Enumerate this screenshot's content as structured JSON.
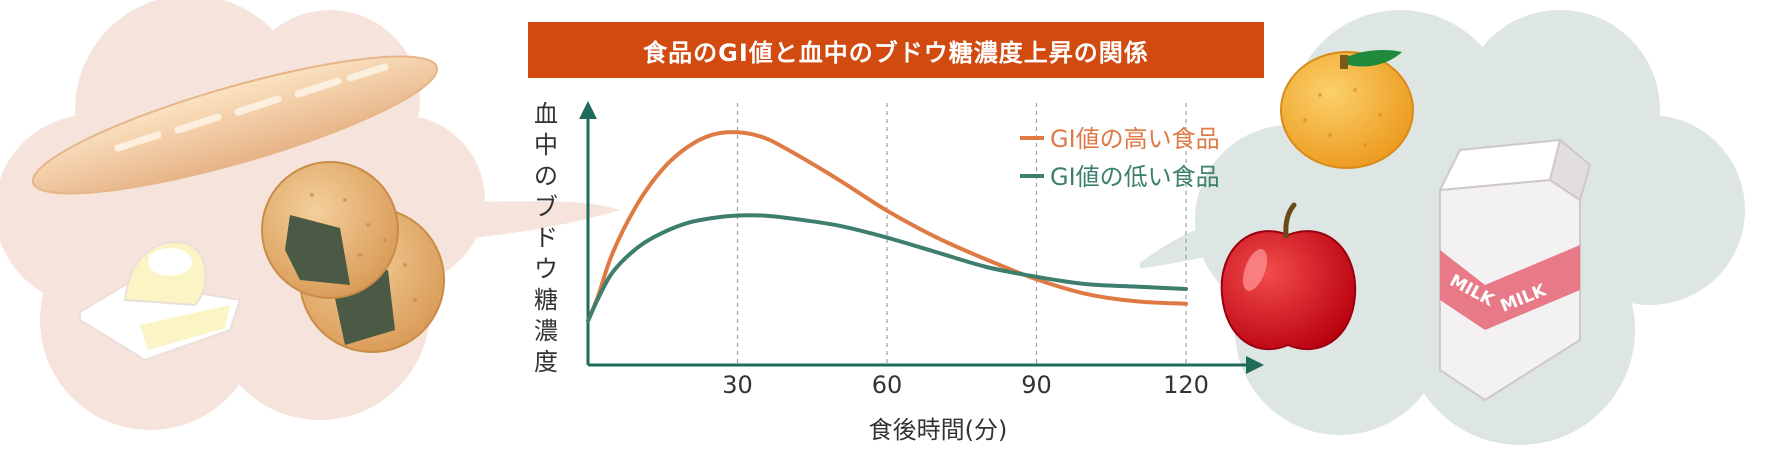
{
  "colors": {
    "title_bg": "#d14a10",
    "axis": "#1f6b5a",
    "high_gi": "#e07a45",
    "low_gi": "#3d7e6e",
    "left_cloud": "#f6e3db",
    "right_cloud": "#dde6e3"
  },
  "icons": {
    "left": [
      "bread-icon",
      "rice-cracker-icon",
      "rice-ball-icon"
    ],
    "right": [
      "orange-icon",
      "apple-icon",
      "milk-carton-icon"
    ]
  },
  "milk_label": "MILK",
  "chart_data": {
    "type": "line",
    "title": "食品のGI値と血中のブドウ糖濃度上昇の関係",
    "xlabel": "食後時間(分)",
    "ylabel": "血中のブドウ糖濃度",
    "x_ticks": [
      30,
      60,
      90,
      120
    ],
    "xlim": [
      0,
      135
    ],
    "ylim": [
      0,
      100
    ],
    "grid": "vertical dashed at ticks",
    "legend_position": "top-right",
    "series": [
      {
        "name": "GI値の高い食品",
        "color": "#e07a45",
        "x": [
          0,
          2,
          5,
          10,
          15,
          20,
          25,
          30,
          35,
          40,
          50,
          60,
          70,
          80,
          90,
          100,
          110,
          120
        ],
        "y": [
          18,
          28,
          46,
          66,
          80,
          89,
          94,
          95,
          93,
          88,
          76,
          63,
          52,
          43,
          35,
          29,
          26,
          25
        ]
      },
      {
        "name": "GI値の低い食品",
        "color": "#3d7e6e",
        "x": [
          0,
          2,
          5,
          10,
          15,
          20,
          25,
          30,
          35,
          40,
          50,
          60,
          70,
          80,
          90,
          100,
          110,
          120
        ],
        "y": [
          18,
          27,
          38,
          48,
          54,
          58,
          60,
          61,
          61,
          60,
          57,
          52,
          46,
          40,
          36,
          33,
          32,
          31
        ]
      }
    ]
  }
}
